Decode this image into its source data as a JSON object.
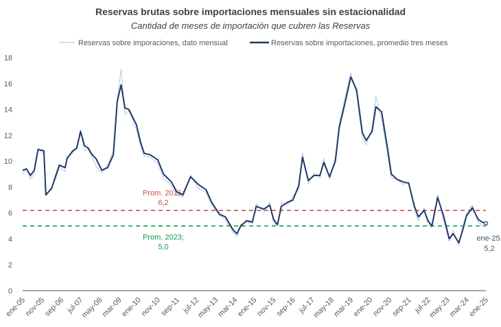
{
  "chart_data": {
    "type": "line",
    "title": "Reservas brutas sobre importaciones mensuales sin estacionalidad",
    "subtitle": "Cantidad de meses de importación que cubren las Reservas",
    "ylim": [
      0,
      18
    ],
    "yticks": [
      0,
      2,
      4,
      6,
      8,
      10,
      12,
      14,
      16,
      18
    ],
    "xlim": [
      "2005-01",
      "2025-01"
    ],
    "xtick_labels": [
      "ene-05",
      "nov-05",
      "sep-06",
      "jul-07",
      "may-08",
      "mar-09",
      "ene-10",
      "nov-10",
      "sep-11",
      "jul-12",
      "may-13",
      "mar-14",
      "ene-15",
      "nov-15",
      "sep-16",
      "jul-17",
      "may-18",
      "mar-19",
      "ene-20",
      "nov-20",
      "sep-21",
      "jul-22",
      "may-23",
      "mar-24",
      "ene-25"
    ],
    "grid": false,
    "legend_placement": "top",
    "series": [
      {
        "name": "Reservas sobre imporaciones, dato mensual",
        "style": "dotted",
        "color": "#8faadc",
        "x": [
          "2005-01",
          "2005-03",
          "2005-05",
          "2005-07",
          "2005-09",
          "2005-12",
          "2006-01",
          "2006-04",
          "2006-06",
          "2006-08",
          "2006-11",
          "2006-12",
          "2007-03",
          "2007-05",
          "2007-07",
          "2007-09",
          "2007-11",
          "2008-01",
          "2008-03",
          "2008-06",
          "2008-09",
          "2008-12",
          "2009-02",
          "2009-04",
          "2009-06",
          "2009-08",
          "2009-12",
          "2010-02",
          "2010-04",
          "2010-07",
          "2010-11",
          "2011-02",
          "2011-06",
          "2011-09",
          "2011-12",
          "2012-04",
          "2012-08",
          "2012-12",
          "2013-03",
          "2013-07",
          "2013-10",
          "2014-02",
          "2014-04",
          "2014-06",
          "2014-09",
          "2014-12",
          "2015-02",
          "2015-06",
          "2015-09",
          "2015-11",
          "2016-01",
          "2016-03",
          "2016-06",
          "2016-09",
          "2016-12",
          "2017-02",
          "2017-05",
          "2017-08",
          "2017-11",
          "2018-01",
          "2018-04",
          "2018-07",
          "2018-09",
          "2018-12",
          "2019-03",
          "2019-06",
          "2019-09",
          "2019-11",
          "2020-02",
          "2020-04",
          "2020-07",
          "2020-10",
          "2020-12",
          "2021-03",
          "2021-06",
          "2021-09",
          "2021-12",
          "2022-02",
          "2022-05",
          "2022-07",
          "2022-09",
          "2022-12",
          "2023-03",
          "2023-06",
          "2023-08",
          "2023-11",
          "2024-01",
          "2024-03",
          "2024-06",
          "2024-09",
          "2024-11",
          "2025-01"
        ],
        "values": [
          9.0,
          9.5,
          8.6,
          9.1,
          11.0,
          10.5,
          7.3,
          8.0,
          8.6,
          9.5,
          9.2,
          10.4,
          10.6,
          11.1,
          12.4,
          10.8,
          10.9,
          10.3,
          9.6,
          9.1,
          9.7,
          10.8,
          14.8,
          17.1,
          13.6,
          13.9,
          12.4,
          11.2,
          10.4,
          10.3,
          9.8,
          8.7,
          8.1,
          7.4,
          7.2,
          8.9,
          7.9,
          7.6,
          6.6,
          5.8,
          5.5,
          4.5,
          4.2,
          5.1,
          5.3,
          5.2,
          6.7,
          6.1,
          6.8,
          5.3,
          5.0,
          6.8,
          6.6,
          7.3,
          7.8,
          10.6,
          8.3,
          9.1,
          8.7,
          10.2,
          8.6,
          10.3,
          12.9,
          14.9,
          16.8,
          15.2,
          11.8,
          11.3,
          12.5,
          15.0,
          13.2,
          10.6,
          8.7,
          8.6,
          8.2,
          8.4,
          6.2,
          5.4,
          6.4,
          5.1,
          4.9,
          7.4,
          5.5,
          3.8,
          4.6,
          3.5,
          4.9,
          6.0,
          6.6,
          5.3,
          5.0,
          5.0
        ]
      },
      {
        "name": "Reservas sobre importaciones, promedio tres meses",
        "style": "solid",
        "color": "#1f3864",
        "x": [
          "2005-01",
          "2005-03",
          "2005-05",
          "2005-07",
          "2005-09",
          "2005-12",
          "2006-01",
          "2006-04",
          "2006-06",
          "2006-08",
          "2006-11",
          "2006-12",
          "2007-03",
          "2007-05",
          "2007-07",
          "2007-09",
          "2007-11",
          "2008-01",
          "2008-03",
          "2008-06",
          "2008-09",
          "2008-12",
          "2009-02",
          "2009-04",
          "2009-06",
          "2009-08",
          "2009-12",
          "2010-02",
          "2010-04",
          "2010-07",
          "2010-11",
          "2011-02",
          "2011-06",
          "2011-09",
          "2011-12",
          "2012-04",
          "2012-08",
          "2012-12",
          "2013-03",
          "2013-07",
          "2013-10",
          "2014-02",
          "2014-04",
          "2014-06",
          "2014-09",
          "2014-12",
          "2015-02",
          "2015-06",
          "2015-09",
          "2015-11",
          "2016-01",
          "2016-03",
          "2016-06",
          "2016-09",
          "2016-12",
          "2017-02",
          "2017-05",
          "2017-08",
          "2017-11",
          "2018-01",
          "2018-04",
          "2018-07",
          "2018-09",
          "2018-12",
          "2019-03",
          "2019-06",
          "2019-09",
          "2019-11",
          "2020-02",
          "2020-04",
          "2020-07",
          "2020-10",
          "2020-12",
          "2021-03",
          "2021-06",
          "2021-09",
          "2021-12",
          "2022-02",
          "2022-05",
          "2022-07",
          "2022-09",
          "2022-12",
          "2023-03",
          "2023-06",
          "2023-08",
          "2023-11",
          "2024-01",
          "2024-03",
          "2024-06",
          "2024-09",
          "2024-11",
          "2025-01"
        ],
        "values": [
          9.3,
          9.4,
          8.9,
          9.3,
          10.9,
          10.8,
          7.4,
          7.9,
          8.8,
          9.7,
          9.5,
          10.2,
          10.8,
          11.0,
          12.3,
          11.2,
          11.0,
          10.5,
          10.2,
          9.3,
          9.5,
          10.5,
          14.6,
          15.9,
          14.1,
          14.0,
          12.8,
          11.5,
          10.6,
          10.5,
          10.1,
          9.0,
          8.4,
          7.6,
          7.4,
          8.8,
          8.2,
          7.8,
          6.8,
          5.9,
          5.7,
          4.7,
          4.4,
          5.0,
          5.4,
          5.3,
          6.5,
          6.3,
          6.6,
          5.5,
          5.1,
          6.5,
          6.8,
          7.0,
          8.1,
          10.3,
          8.5,
          8.9,
          8.9,
          9.9,
          8.8,
          10.0,
          12.6,
          14.5,
          16.5,
          15.5,
          12.2,
          11.6,
          12.3,
          14.2,
          13.8,
          11.0,
          9.0,
          8.6,
          8.4,
          8.3,
          6.5,
          5.7,
          6.2,
          5.4,
          5.0,
          7.2,
          5.8,
          4.0,
          4.4,
          3.7,
          4.7,
          5.8,
          6.4,
          5.5,
          5.3,
          5.2
        ]
      }
    ],
    "reference_lines": [
      {
        "value": 6.2,
        "label": "Prom. 2015;",
        "value_label": "6,2",
        "color": "#c0504d",
        "style": "dashed"
      },
      {
        "value": 5.0,
        "label": "Prom. 2023;",
        "value_label": "5,0",
        "color": "#00a050",
        "style": "dashed"
      }
    ],
    "annotations": [
      {
        "x": "2025-01",
        "y": 5.2,
        "text": "ene-25;",
        "text2": "5,2",
        "color": "#44546a"
      }
    ]
  }
}
